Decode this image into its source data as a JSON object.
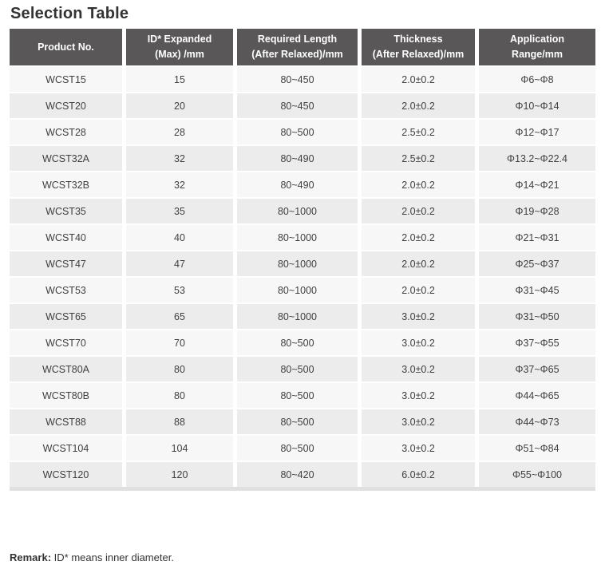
{
  "page": {
    "title": "Selection Table"
  },
  "table": {
    "column_keys": [
      "product-no",
      "id-expanded",
      "required-length",
      "thickness",
      "application-range"
    ],
    "columns": [
      "Product No.",
      "ID* Expanded\n(Max) /mm",
      "Required Length\n(After Relaxed)/mm",
      "Thickness\n(After Relaxed)/mm",
      "Application\nRange/mm"
    ],
    "rows": [
      [
        "WCST15",
        "15",
        "80~450",
        "2.0±0.2",
        "Φ6~Φ8"
      ],
      [
        "WCST20",
        "20",
        "80~450",
        "2.0±0.2",
        "Φ10~Φ14"
      ],
      [
        "WCST28",
        "28",
        "80~500",
        "2.5±0.2",
        "Φ12~Φ17"
      ],
      [
        "WCST32A",
        "32",
        "80~490",
        "2.5±0.2",
        "Φ13.2~Φ22.4"
      ],
      [
        "WCST32B",
        "32",
        "80~490",
        "2.0±0.2",
        "Φ14~Φ21"
      ],
      [
        "WCST35",
        "35",
        "80~1000",
        "2.0±0.2",
        "Φ19~Φ28"
      ],
      [
        "WCST40",
        "40",
        "80~1000",
        "2.0±0.2",
        "Φ21~Φ31"
      ],
      [
        "WCST47",
        "47",
        "80~1000",
        "2.0±0.2",
        "Φ25~Φ37"
      ],
      [
        "WCST53",
        "53",
        "80~1000",
        "2.0±0.2",
        "Φ31~Φ45"
      ],
      [
        "WCST65",
        "65",
        "80~1000",
        "3.0±0.2",
        "Φ31~Φ50"
      ],
      [
        "WCST70",
        "70",
        "80~500",
        "3.0±0.2",
        "Φ37~Φ55"
      ],
      [
        "WCST80A",
        "80",
        "80~500",
        "3.0±0.2",
        "Φ37~Φ65"
      ],
      [
        "WCST80B",
        "80",
        "80~500",
        "3.0±0.2",
        "Φ44~Φ65"
      ],
      [
        "WCST88",
        "88",
        "80~500",
        "3.0±0.2",
        "Φ44~Φ73"
      ],
      [
        "WCST104",
        "104",
        "80~500",
        "3.0±0.2",
        "Φ51~Φ84"
      ],
      [
        "WCST120",
        "120",
        "80~420",
        "6.0±0.2",
        "Φ55~Φ100"
      ]
    ]
  },
  "remark": {
    "label": "Remark:",
    "text": " ID* means inner diameter."
  },
  "colors": {
    "header_bg": "#595757",
    "header_text": "#ffffff",
    "row_light": "#f7f7f7",
    "row_dark": "#ececec",
    "strip": "#e0e0e0",
    "body_text": "#3f3f3f",
    "title_text": "#333333"
  }
}
